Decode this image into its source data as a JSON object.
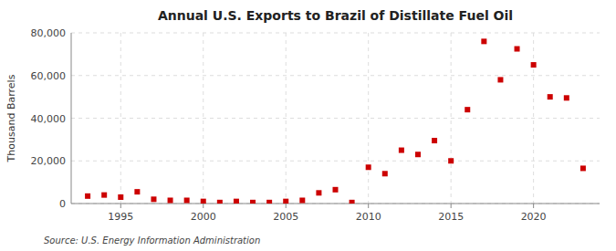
{
  "chart_data": {
    "type": "scatter",
    "title": "Annual U.S. Exports to Brazil of Distillate Fuel Oil",
    "ylabel": "Thousand Barrels",
    "source": "Source: U.S. Energy Information Administration",
    "x": [
      1993,
      1994,
      1995,
      1996,
      1997,
      1998,
      1999,
      2000,
      2001,
      2002,
      2003,
      2004,
      2005,
      2006,
      2007,
      2008,
      2009,
      2010,
      2011,
      2012,
      2013,
      2014,
      2015,
      2016,
      2017,
      2018,
      2019,
      2020,
      2021,
      2022,
      2023
    ],
    "values": [
      3500,
      4000,
      3000,
      5500,
      2000,
      1500,
      1500,
      1000,
      500,
      1000,
      500,
      500,
      1000,
      1500,
      5000,
      6500,
      500,
      17000,
      14000,
      25000,
      23000,
      29500,
      20000,
      44000,
      76000,
      58000,
      72500,
      65000,
      50000,
      49500,
      16500
    ],
    "color": "#cc0000",
    "marker": "square",
    "xlim": [
      1992,
      2024
    ],
    "xticks": [
      1995,
      2000,
      2005,
      2010,
      2015,
      2020
    ],
    "ylim": [
      0,
      80000
    ],
    "yticks": [
      0,
      {
        "value": 20000,
        "label": "20,000"
      },
      {
        "value": 40000,
        "label": "40,000"
      },
      {
        "value": 60000,
        "label": "60,000"
      },
      {
        "value": 80000,
        "label": "80,000"
      }
    ],
    "grid": true
  }
}
